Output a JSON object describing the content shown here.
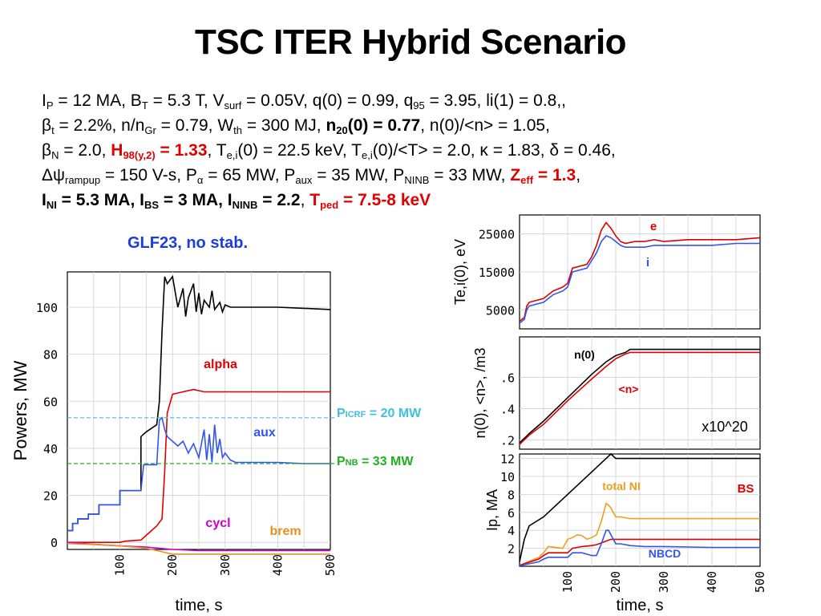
{
  "title": "TSC ITER Hybrid Scenario",
  "params": {
    "line1": [
      {
        "t": "I"
      },
      {
        "t": "P",
        "sub": true
      },
      {
        "t": " = 12 MA, B"
      },
      {
        "t": "T",
        "sub": true
      },
      {
        "t": " = 5.3 T, V"
      },
      {
        "t": "surf",
        "sub": true
      },
      {
        "t": " = 0.05V, q(0) = 0.99, q"
      },
      {
        "t": "95",
        "sub": true
      },
      {
        "t": " = 3.95, li(1) = 0.8,,"
      }
    ],
    "line2": [
      {
        "t": "β"
      },
      {
        "t": "t",
        "sub": true
      },
      {
        "t": " = 2.2%, n/n"
      },
      {
        "t": "Gr",
        "sub": true
      },
      {
        "t": " = 0.79, W"
      },
      {
        "t": "th",
        "sub": true
      },
      {
        "t": " = 300 MJ, "
      },
      {
        "t": "n",
        "b": true
      },
      {
        "t": "20",
        "sub": true,
        "b": true
      },
      {
        "t": "(0) = 0.77",
        "b": true
      },
      {
        "t": ", n(0)/<n> = 1.05,"
      }
    ],
    "line3": [
      {
        "t": "β"
      },
      {
        "t": "N",
        "sub": true
      },
      {
        "t": " = 2.0, "
      },
      {
        "t": "H",
        "r": true
      },
      {
        "t": "98(y,2)",
        "sub": true,
        "r": true
      },
      {
        "t": " = 1.33",
        "r": true
      },
      {
        "t": ", T"
      },
      {
        "t": "e,i",
        "sub": true
      },
      {
        "t": "(0) = 22.5 keV, T"
      },
      {
        "t": "e,i",
        "sub": true
      },
      {
        "t": "(0)/<T> = 2.0, κ = 1.83, δ = 0.46,"
      }
    ],
    "line4": [
      {
        "t": "Δψ"
      },
      {
        "t": "rampup",
        "sub": true
      },
      {
        "t": " = 150 V-s, P"
      },
      {
        "t": "α",
        "sub": true
      },
      {
        "t": " = 65 MW, P"
      },
      {
        "t": "aux",
        "sub": true
      },
      {
        "t": " = 35 MW, P"
      },
      {
        "t": "NINB",
        "sub": true
      },
      {
        "t": " = 33 MW, "
      },
      {
        "t": "Z",
        "r": true
      },
      {
        "t": "eff",
        "sub": true,
        "r": true
      },
      {
        "t": " = 1.3",
        "r": true
      },
      {
        "t": ","
      }
    ],
    "line5": [
      {
        "t": "I",
        "b": true
      },
      {
        "t": "NI",
        "sub": true,
        "b": true
      },
      {
        "t": " = 5.3 MA, I",
        "b": true
      },
      {
        "t": "BS",
        "sub": true,
        "b": true
      },
      {
        "t": " = 3 MA, I",
        "b": true
      },
      {
        "t": "NINB",
        "sub": true,
        "b": true
      },
      {
        "t": " = 2.2",
        "b": true
      },
      {
        "t": ", "
      },
      {
        "t": "T",
        "r": true
      },
      {
        "t": "ped",
        "sub": true,
        "r": true
      },
      {
        "t": " = 7.5-8 keV",
        "r": true
      }
    ]
  },
  "chart_data": [
    {
      "type": "line",
      "title": "GLF23, no stab.",
      "xlabel": "time, s",
      "ylabel": "Powers, MW",
      "xlim": [
        0,
        500
      ],
      "ylim": [
        -3,
        115
      ],
      "xticks": [
        "100",
        "200",
        "300",
        "400",
        "500"
      ],
      "yticks": [
        "0",
        "20",
        "40",
        "60",
        "80",
        "100"
      ],
      "series": [
        {
          "name": "",
          "color": "#000000",
          "x": [
            0,
            10,
            10,
            20,
            20,
            40,
            40,
            60,
            60,
            100,
            100,
            140,
            140,
            150,
            170,
            175,
            180,
            185,
            190,
            200,
            210,
            220,
            225,
            230,
            240,
            245,
            250,
            255,
            260,
            270,
            275,
            280,
            290,
            295,
            300,
            310,
            320,
            350,
            400,
            450,
            500
          ],
          "y": [
            5,
            5,
            8,
            8,
            10,
            10,
            12,
            12,
            16,
            16,
            22,
            22,
            45,
            47,
            50,
            60,
            90,
            113,
            110,
            113,
            100,
            108,
            96,
            104,
            110,
            98,
            106,
            97,
            103,
            100,
            107,
            99,
            102,
            98,
            101,
            100,
            100,
            100,
            100,
            99.5,
            99
          ]
        },
        {
          "name": "alpha",
          "color": "#e00000",
          "x": [
            0,
            60,
            100,
            110,
            140,
            150,
            160,
            170,
            180,
            185,
            190,
            200,
            220,
            240,
            260,
            300,
            350,
            400,
            450,
            500
          ],
          "y": [
            0,
            0,
            0,
            0.5,
            1,
            3,
            5,
            7,
            10,
            30,
            55,
            63,
            64,
            65,
            64,
            64,
            64,
            64,
            64,
            64
          ]
        },
        {
          "name": "aux",
          "color": "#3355ee",
          "x": [
            0,
            10,
            10,
            20,
            20,
            40,
            40,
            60,
            60,
            100,
            100,
            120,
            130,
            140,
            145,
            170,
            175,
            180,
            185,
            190,
            200,
            210,
            220,
            230,
            240,
            250,
            260,
            265,
            270,
            275,
            280,
            285,
            290,
            295,
            300,
            310,
            320,
            340,
            360,
            400,
            450,
            500
          ],
          "y": [
            5,
            5,
            8,
            8,
            10,
            10,
            12,
            12,
            16,
            16,
            22,
            22,
            22,
            22,
            33,
            33,
            52,
            53,
            48,
            45,
            43,
            41,
            43,
            38,
            42,
            36,
            48,
            35,
            46,
            34,
            50,
            38,
            44,
            36,
            38,
            35,
            34,
            34,
            34,
            34,
            33.5,
            33.5
          ]
        },
        {
          "name": "cycl",
          "color": "#cc00cc",
          "x": [
            0,
            60,
            100,
            150,
            200,
            250,
            300,
            400,
            500
          ],
          "y": [
            0,
            -1,
            -1.5,
            -2,
            -3,
            -3.5,
            -3.5,
            -3.5,
            -3.5
          ]
        },
        {
          "name": "brem",
          "color": "#e89020",
          "x": [
            0,
            60,
            100,
            150,
            180,
            200,
            250,
            300,
            400,
            500
          ],
          "y": [
            -0.5,
            -1,
            -1.5,
            -2.5,
            -4,
            -5,
            -5,
            -5,
            -5,
            -5
          ]
        }
      ],
      "reference_lines": [
        {
          "label": "P",
          "sub": "ICRF",
          "suffix": " = 20 MW",
          "y": 53,
          "color": "#40c0e0"
        },
        {
          "label": "P",
          "sub": "NB",
          "suffix": " = 33 MW",
          "y": 33.5,
          "color": "#20b020"
        }
      ],
      "annotations": [
        "alpha",
        "aux",
        "cycl",
        "brem"
      ]
    },
    {
      "type": "line",
      "ylabel": "Te,i(0), eV",
      "xlim": [
        0,
        500
      ],
      "ylim": [
        0,
        30000
      ],
      "yticks": [
        "5000",
        "15000",
        "25000"
      ],
      "series": [
        {
          "name": "e",
          "color": "#e00000",
          "x": [
            0,
            10,
            15,
            20,
            50,
            60,
            70,
            90,
            100,
            105,
            110,
            140,
            150,
            160,
            170,
            180,
            190,
            200,
            210,
            220,
            240,
            260,
            280,
            300,
            350,
            400,
            450,
            500
          ],
          "y": [
            2000,
            3000,
            6000,
            7000,
            8000,
            9000,
            10000,
            11000,
            12000,
            14000,
            16000,
            17000,
            19000,
            22000,
            26000,
            28000,
            26500,
            24500,
            23000,
            22500,
            23000,
            23000,
            23500,
            23000,
            23500,
            23500,
            23500,
            24000
          ]
        },
        {
          "name": "i",
          "color": "#3355ee",
          "x": [
            0,
            10,
            15,
            20,
            50,
            60,
            70,
            90,
            100,
            105,
            110,
            140,
            150,
            160,
            170,
            180,
            190,
            200,
            210,
            220,
            240,
            260,
            280,
            300,
            350,
            400,
            450,
            500
          ],
          "y": [
            1500,
            2500,
            5000,
            6000,
            7000,
            8000,
            9000,
            10000,
            11000,
            13000,
            15000,
            16000,
            18000,
            20000,
            23000,
            24500,
            24000,
            23000,
            22000,
            21500,
            21500,
            21500,
            22000,
            22000,
            22000,
            22000,
            22500,
            22500
          ]
        }
      ],
      "annotations": [
        "e",
        "i"
      ]
    },
    {
      "type": "line",
      "ylabel": "n(0), <n>, /m3",
      "xlim": [
        0,
        500
      ],
      "ylim": [
        0.14,
        0.86
      ],
      "yticks": [
        ".2",
        ".4",
        ".6"
      ],
      "scale_note": "x10^20",
      "series": [
        {
          "name": "n(0)",
          "color": "#000000",
          "x": [
            0,
            10,
            20,
            50,
            100,
            150,
            180,
            200,
            220,
            230,
            250,
            300,
            350,
            400,
            450,
            500
          ],
          "y": [
            0.18,
            0.21,
            0.24,
            0.32,
            0.47,
            0.62,
            0.7,
            0.74,
            0.76,
            0.78,
            0.78,
            0.78,
            0.78,
            0.78,
            0.78,
            0.78
          ]
        },
        {
          "name": "<n>",
          "color": "#e00000",
          "x": [
            0,
            10,
            20,
            50,
            100,
            150,
            180,
            200,
            220,
            230,
            250,
            300,
            350,
            400,
            450,
            500
          ],
          "y": [
            0.17,
            0.2,
            0.23,
            0.3,
            0.45,
            0.59,
            0.67,
            0.72,
            0.75,
            0.76,
            0.76,
            0.76,
            0.76,
            0.76,
            0.76,
            0.76
          ]
        }
      ],
      "annotations": [
        "n(0)",
        "<n>"
      ]
    },
    {
      "type": "line",
      "xlabel": "time, s",
      "ylabel": "Ip, MA",
      "xlim": [
        0,
        500
      ],
      "ylim": [
        0,
        12.5
      ],
      "xticks": [
        "100",
        "200",
        "300",
        "400",
        "500"
      ],
      "yticks": [
        "2",
        "4",
        "6",
        "8",
        "10",
        "12"
      ],
      "series": [
        {
          "name": "",
          "color": "#000000",
          "x": [
            0,
            10,
            20,
            50,
            100,
            150,
            180,
            190,
            200,
            220,
            250,
            300,
            350,
            400,
            450,
            500
          ],
          "y": [
            0.5,
            3,
            4.5,
            5.5,
            8,
            10.5,
            12,
            12.5,
            12,
            12,
            12,
            12,
            12,
            12,
            12,
            12
          ]
        },
        {
          "name": "total NI",
          "color": "#e8a020",
          "x": [
            0,
            40,
            50,
            60,
            90,
            100,
            110,
            120,
            130,
            140,
            150,
            160,
            170,
            180,
            185,
            190,
            200,
            210,
            230,
            260,
            300,
            400,
            500
          ],
          "y": [
            0.1,
            1,
            1.5,
            2.2,
            2,
            3,
            3.2,
            3.5,
            3.4,
            3,
            3.2,
            3.5,
            5,
            7,
            6.8,
            6.5,
            5.5,
            5.5,
            5.3,
            5.3,
            5.3,
            5.3,
            5.3
          ]
        },
        {
          "name": "BS",
          "color": "#e00000",
          "x": [
            0,
            40,
            50,
            60,
            100,
            110,
            130,
            150,
            160,
            170,
            180,
            190,
            200,
            210,
            230,
            260,
            300,
            400,
            500
          ],
          "y": [
            0.1,
            0.8,
            1.2,
            1.5,
            1.5,
            2,
            2.2,
            2.3,
            2.4,
            2.6,
            2.8,
            3,
            3,
            3,
            3,
            3,
            3,
            3,
            3
          ]
        },
        {
          "name": "NBCD",
          "color": "#3355ee",
          "x": [
            0,
            40,
            50,
            60,
            100,
            110,
            130,
            150,
            160,
            170,
            180,
            185,
            190,
            200,
            210,
            230,
            260,
            300,
            400,
            500
          ],
          "y": [
            0.05,
            0.5,
            0.8,
            1,
            1,
            1.5,
            1.5,
            1.2,
            1.2,
            2.5,
            4,
            4,
            3.5,
            2.5,
            2.5,
            2.3,
            2.2,
            2.2,
            2.1,
            2.1
          ]
        }
      ],
      "annotations": [
        "total NI",
        "BS",
        "NBCD"
      ]
    }
  ]
}
